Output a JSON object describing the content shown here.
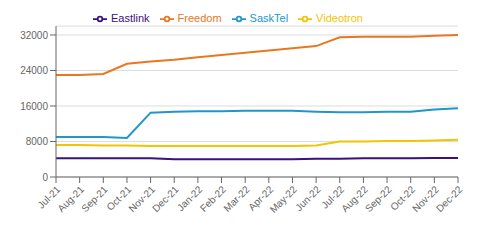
{
  "chart_data": {
    "type": "line",
    "categories": [
      "Jul-21",
      "Aug-21",
      "Sep-21",
      "Oct-21",
      "Nov-21",
      "Dec-21",
      "Jan-22",
      "Feb-22",
      "Mar-22",
      "Apr-22",
      "May-22",
      "Jun-22",
      "Jul-22",
      "Aug-22",
      "Sep-22",
      "Oct-22",
      "Nov-22",
      "Dec-22"
    ],
    "series": [
      {
        "name": "Freedom",
        "color": "#E87722",
        "values": [
          23000,
          23000,
          23200,
          25500,
          26000,
          26400,
          27000,
          27500,
          28000,
          28500,
          29000,
          29500,
          31500,
          31600,
          31600,
          31600,
          31800,
          32000
        ]
      },
      {
        "name": "Videotron",
        "color": "#F5C400",
        "values": [
          7200,
          7200,
          7100,
          7100,
          7000,
          7000,
          7000,
          7000,
          7000,
          7000,
          7000,
          7100,
          8000,
          8000,
          8100,
          8100,
          8200,
          8400
        ]
      },
      {
        "name": "SaskTel",
        "color": "#2196C8",
        "values": [
          9000,
          9000,
          9000,
          8800,
          14500,
          14700,
          14800,
          14800,
          14900,
          14900,
          14900,
          14700,
          14600,
          14600,
          14700,
          14700,
          15200,
          15500
        ]
      },
      {
        "name": "Eastlink",
        "color": "#3B1080",
        "values": [
          4200,
          4200,
          4200,
          4200,
          4200,
          4000,
          4000,
          4000,
          4000,
          4000,
          4000,
          4100,
          4100,
          4200,
          4200,
          4200,
          4300,
          4300
        ]
      }
    ],
    "ylim": [
      0,
      34000
    ],
    "yticks": [
      0,
      8000,
      16000,
      24000,
      32000
    ],
    "grid": true,
    "legend": "top"
  }
}
